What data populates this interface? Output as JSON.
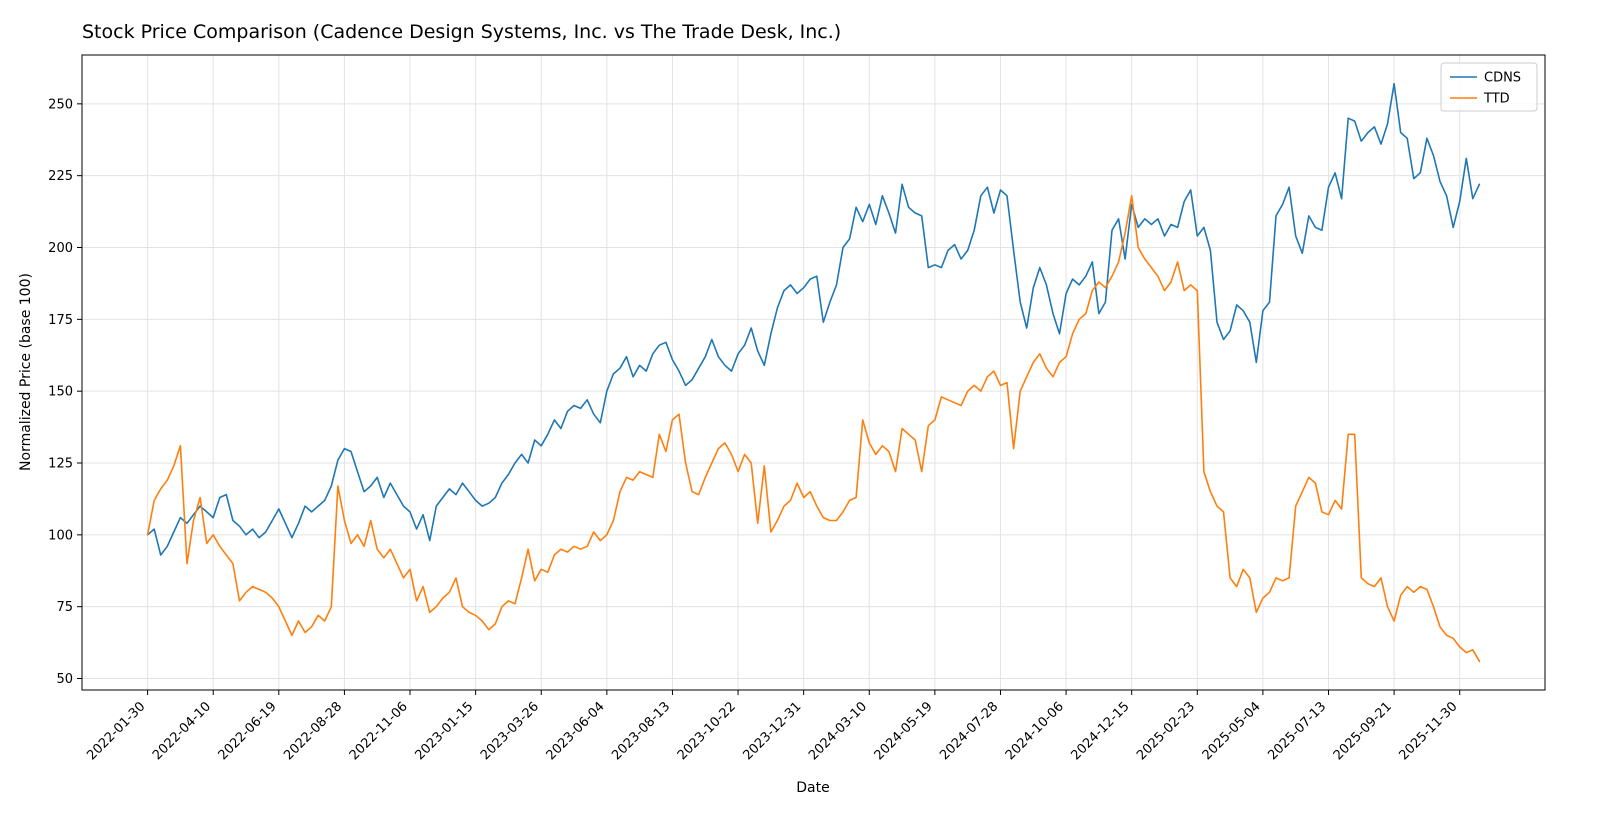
{
  "chart_data": {
    "type": "line",
    "title": "Stock Price Comparison (Cadence Design Systems, Inc. vs The Trade Desk, Inc.)",
    "xlabel": "Date",
    "ylabel": "Normalized Price (base 100)",
    "grid": true,
    "legend_position": "upper right",
    "x_unit": "weeks since 2022-01-30",
    "n_points": 204,
    "xlim": [
      -10,
      213
    ],
    "ylim": [
      46,
      267
    ],
    "y_ticks": [
      50,
      75,
      100,
      125,
      150,
      175,
      200,
      225,
      250
    ],
    "x_tick_indices": [
      0,
      10,
      20,
      30,
      40,
      50,
      60,
      70,
      80,
      90,
      100,
      110,
      120,
      130,
      140,
      150,
      160,
      170,
      180,
      190,
      200
    ],
    "x_tick_labels": [
      "2022-01-30",
      "2022-04-10",
      "2022-06-19",
      "2022-08-28",
      "2022-11-06",
      "2023-01-15",
      "2023-03-26",
      "2023-06-04",
      "2023-08-13",
      "2023-10-22",
      "2023-12-31",
      "2024-03-10",
      "2024-05-19",
      "2024-07-28",
      "2024-10-06",
      "2024-12-15",
      "2025-02-23",
      "2025-05-04",
      "2025-07-13",
      "2025-09-21",
      "2025-11-30"
    ],
    "series": [
      {
        "name": "CDNS",
        "color": "#1f77b4",
        "values": [
          100,
          102,
          93,
          96,
          101,
          106,
          104,
          107,
          110,
          108,
          106,
          113,
          114,
          105,
          103,
          100,
          102,
          99,
          101,
          105,
          109,
          104,
          99,
          104,
          110,
          108,
          110,
          112,
          117,
          126,
          130,
          129,
          122,
          115,
          117,
          120,
          113,
          118,
          114,
          110,
          108,
          102,
          107,
          98,
          110,
          113,
          116,
          114,
          118,
          115,
          112,
          110,
          111,
          113,
          118,
          121,
          125,
          128,
          125,
          133,
          131,
          135,
          140,
          137,
          143,
          145,
          144,
          147,
          142,
          139,
          150,
          156,
          158,
          162,
          155,
          159,
          157,
          163,
          166,
          167,
          161,
          157,
          152,
          154,
          158,
          162,
          168,
          162,
          159,
          157,
          163,
          166,
          172,
          164,
          159,
          170,
          179,
          185,
          187,
          184,
          186,
          189,
          190,
          174,
          181,
          187,
          200,
          203,
          214,
          209,
          215,
          208,
          218,
          212,
          205,
          222,
          214,
          212,
          211,
          193,
          194,
          193,
          199,
          201,
          196,
          199,
          206,
          218,
          221,
          212,
          220,
          218,
          199,
          181,
          172,
          186,
          193,
          187,
          177,
          170,
          184,
          189,
          187,
          190,
          195,
          177,
          181,
          206,
          210,
          196,
          215,
          207,
          210,
          208,
          210,
          204,
          208,
          207,
          216,
          220,
          204,
          207,
          199,
          174,
          168,
          171,
          180,
          178,
          174,
          160,
          178,
          181,
          211,
          215,
          221,
          204,
          198,
          211,
          207,
          206,
          221,
          226,
          217,
          245,
          244,
          237,
          240,
          242,
          236,
          243,
          257,
          240,
          238,
          224,
          226,
          238,
          232,
          223,
          218,
          207,
          216,
          231,
          217,
          222
        ]
      },
      {
        "name": "TTD",
        "color": "#ff7f0e",
        "values": [
          100,
          112,
          116,
          119,
          124,
          131,
          90,
          105,
          113,
          97,
          100,
          96,
          93,
          90,
          77,
          80,
          82,
          81,
          80,
          78,
          75,
          70,
          65,
          70,
          66,
          68,
          72,
          70,
          75,
          117,
          105,
          97,
          100,
          96,
          105,
          95,
          92,
          95,
          90,
          85,
          88,
          77,
          82,
          73,
          75,
          78,
          80,
          85,
          75,
          73,
          72,
          70,
          67,
          69,
          75,
          77,
          76,
          85,
          95,
          84,
          88,
          87,
          93,
          95,
          94,
          96,
          95,
          96,
          101,
          98,
          100,
          105,
          115,
          120,
          119,
          122,
          121,
          120,
          135,
          129,
          140,
          142,
          125,
          115,
          114,
          120,
          125,
          130,
          132,
          128,
          122,
          128,
          125,
          104,
          124,
          101,
          105,
          110,
          112,
          118,
          113,
          115,
          110,
          106,
          105,
          105,
          108,
          112,
          113,
          140,
          132,
          128,
          131,
          129,
          122,
          137,
          135,
          133,
          122,
          138,
          140,
          148,
          147,
          146,
          145,
          150,
          152,
          150,
          155,
          157,
          152,
          153,
          130,
          150,
          155,
          160,
          163,
          158,
          155,
          160,
          162,
          170,
          175,
          177,
          185,
          188,
          186,
          190,
          195,
          205,
          218,
          200,
          196,
          193,
          190,
          185,
          188,
          195,
          185,
          187,
          185,
          122,
          115,
          110,
          108,
          85,
          82,
          88,
          85,
          73,
          78,
          80,
          85,
          84,
          85,
          110,
          115,
          120,
          118,
          108,
          107,
          112,
          109,
          135,
          135,
          85,
          83,
          82,
          85,
          75,
          70,
          79,
          82,
          80,
          82,
          81,
          75,
          68,
          65,
          64,
          61,
          59,
          60,
          56
        ]
      }
    ]
  }
}
